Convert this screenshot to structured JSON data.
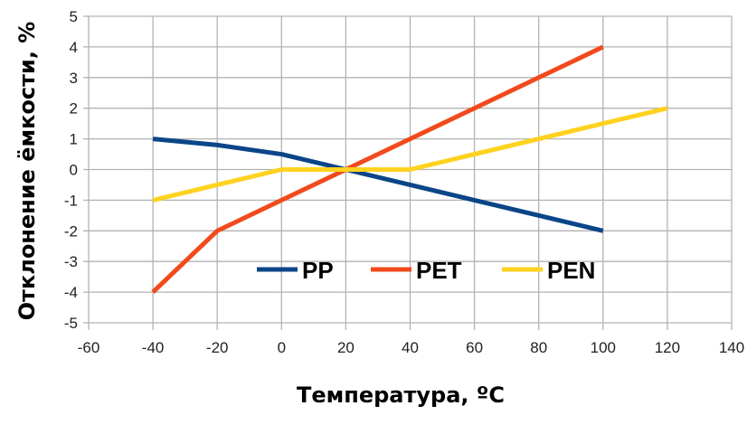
{
  "chart_data": {
    "type": "line",
    "title": "",
    "xlabel": "Температура, oC",
    "ylabel": "Отклонение ёмкости, %",
    "xlim": [
      -60,
      140
    ],
    "ylim": [
      -5,
      5
    ],
    "xticks": [
      -60,
      -40,
      -20,
      0,
      20,
      40,
      60,
      80,
      100,
      120,
      140
    ],
    "yticks": [
      -5,
      -4,
      -3,
      -2,
      -1,
      0,
      1,
      2,
      3,
      4,
      5
    ],
    "grid": true,
    "legend_position": "inside-bottom-center",
    "series": [
      {
        "name": "PP",
        "color": "#0a4588",
        "x": [
          -40,
          -20,
          0,
          20,
          40,
          60,
          80,
          100
        ],
        "y": [
          1,
          0.8,
          0.5,
          0,
          -0.5,
          -1,
          -1.5,
          -2
        ]
      },
      {
        "name": "PET",
        "color": "#f24a1c",
        "x": [
          -40,
          -20,
          0,
          20,
          40,
          60,
          80,
          100
        ],
        "y": [
          -4,
          -2,
          -1,
          0,
          1,
          2,
          3,
          4
        ]
      },
      {
        "name": "PEN",
        "color": "#ffd21f",
        "x": [
          -40,
          -20,
          0,
          40,
          120
        ],
        "y": [
          -1,
          -0.5,
          0,
          0,
          2
        ]
      }
    ]
  },
  "labels": {
    "xlabel": "Температура, ºC",
    "ylabel": "Отклонение ёмкости, %"
  }
}
